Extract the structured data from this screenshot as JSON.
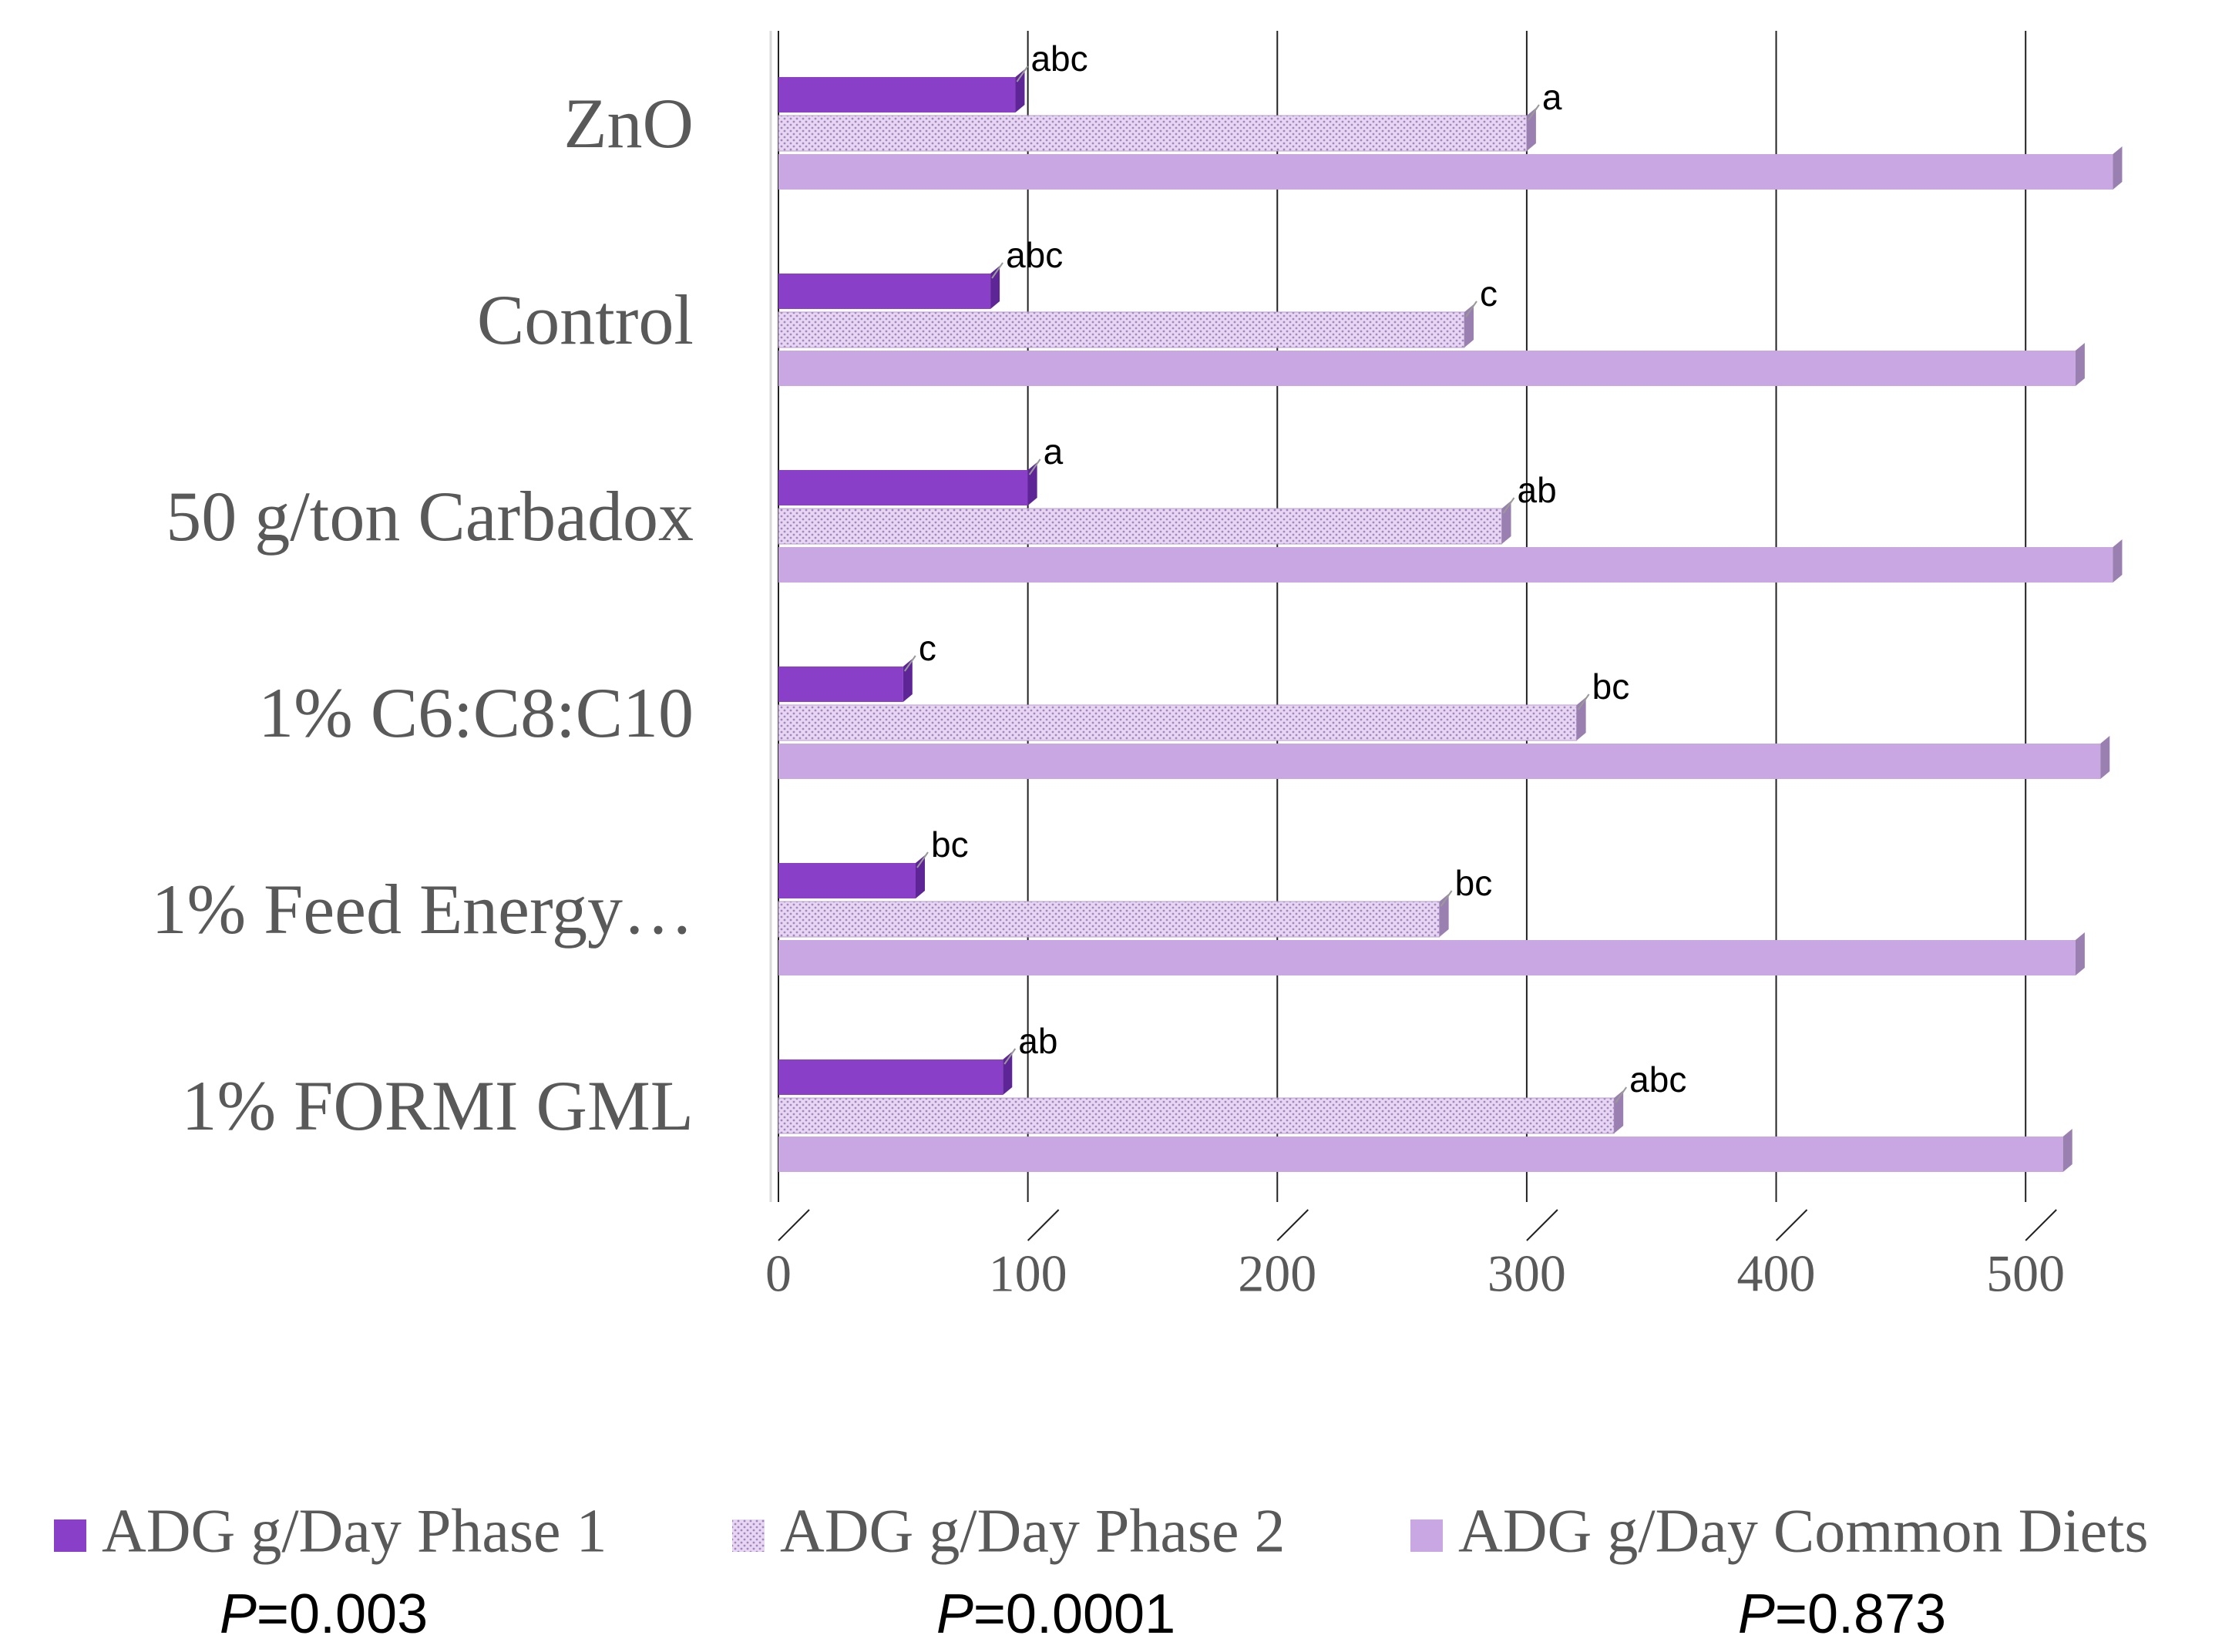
{
  "chart_data": {
    "type": "bar",
    "orientation": "horizontal",
    "categories": [
      "ZnO",
      "Control",
      "50 g/ton Carbadox",
      "1% C6:C8:C10",
      "1% Feed Energy…",
      "1% FORMI GML"
    ],
    "series": [
      {
        "name": "ADG g/Day Phase 1",
        "color": "#8a3fc9",
        "fill": "solid",
        "values": [
          95,
          85,
          100,
          50,
          55,
          90
        ],
        "annotations": [
          "abc",
          "abc",
          "a",
          "c",
          "bc",
          "ab"
        ]
      },
      {
        "name": "ADG g/Day Phase 2",
        "color": "#e6d6f1",
        "fill": "dotted",
        "values": [
          300,
          275,
          290,
          320,
          265,
          335
        ],
        "annotations": [
          "a",
          "c",
          "ab",
          "bc",
          "bc",
          "abc"
        ]
      },
      {
        "name": "ADG g/Day Common Diets",
        "color": "#c9a7e2",
        "fill": "solid",
        "values": [
          535,
          520,
          535,
          530,
          520,
          515
        ]
      }
    ],
    "xlim": [
      0,
      550
    ],
    "xticks": [
      0,
      100,
      200,
      300,
      400,
      500
    ],
    "grid": true,
    "p_symbol": "P",
    "p_values": [
      "=0.003",
      "=0.0001",
      "=0.873"
    ]
  }
}
